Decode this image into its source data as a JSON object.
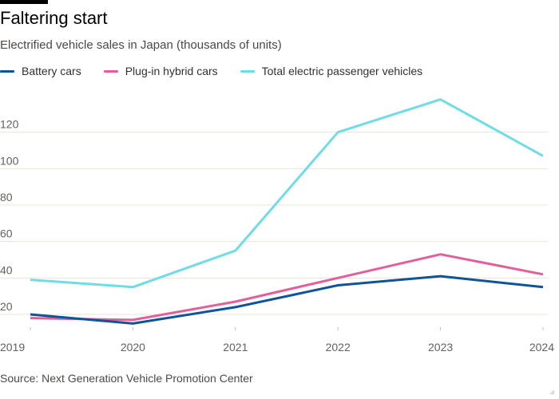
{
  "header": {
    "title": "Faltering start",
    "subtitle": "Electrified vehicle sales in Japan (thousands of units)"
  },
  "footer": {
    "source": "Source: Next Generation Vehicle Promotion Center"
  },
  "colors": {
    "battery": "#0f5499",
    "phev": "#e45f9a",
    "total": "#6fdce6",
    "grid": "#e8e6d8",
    "tick": "#66605c"
  },
  "chart_data": {
    "type": "line",
    "title": "Faltering start",
    "subtitle": "Electrified vehicle sales in Japan (thousands of units)",
    "xlabel": "",
    "ylabel": "",
    "x": [
      "2019",
      "2020",
      "2021",
      "2022",
      "2023",
      "2024"
    ],
    "x_ticks": [
      "2019",
      "2020",
      "2021",
      "2022",
      "2023",
      "2024"
    ],
    "y_ticks": [
      20,
      40,
      60,
      80,
      100,
      120
    ],
    "ylim": [
      13,
      140
    ],
    "grid": true,
    "legend_position": "top-left",
    "series": [
      {
        "key": "battery",
        "name": "Battery cars",
        "color": "#0f5499",
        "values": [
          20,
          15,
          24,
          36,
          41,
          35
        ]
      },
      {
        "key": "phev",
        "name": "Plug-in hybrid cars",
        "color": "#e45f9a",
        "values": [
          18,
          17,
          27,
          40,
          53,
          42
        ]
      },
      {
        "key": "total",
        "name": "Total electric passenger vehicles",
        "color": "#6fdce6",
        "values": [
          39,
          35,
          55,
          120,
          138,
          107
        ]
      }
    ]
  }
}
